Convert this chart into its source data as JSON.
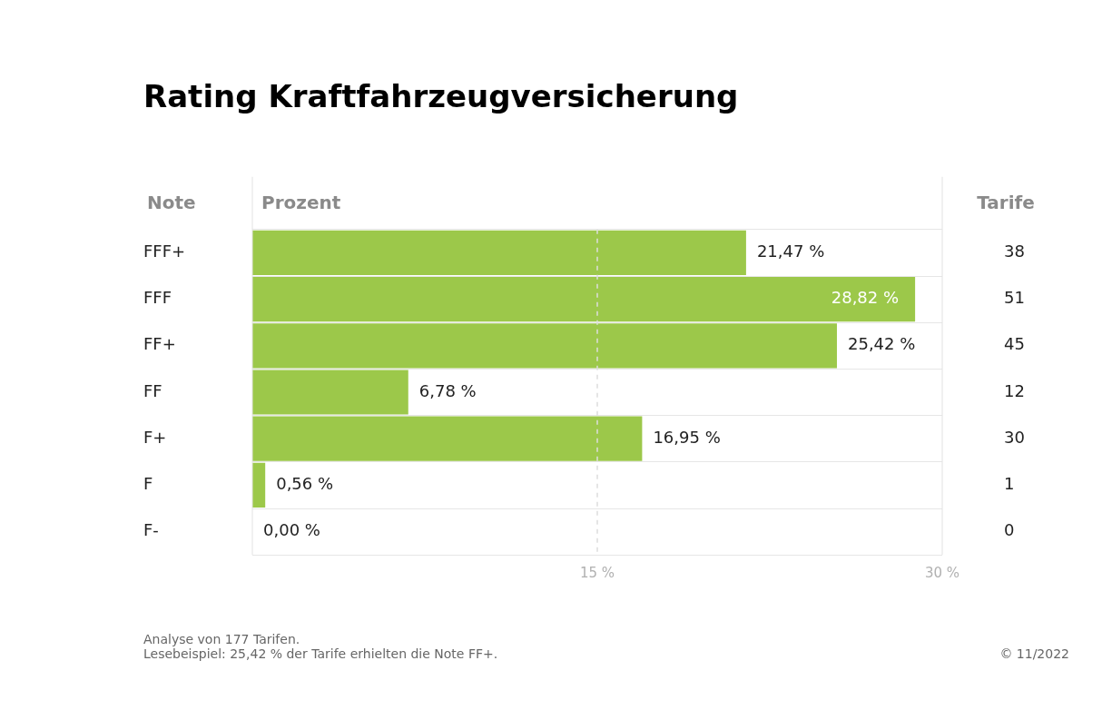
{
  "chart_data": {
    "type": "bar",
    "orientation": "horizontal",
    "title": "Rating Kraftfahrzeugversicherung",
    "ylabel": "Note",
    "xlabel": "Prozent",
    "y2label": "Tarife",
    "categories": [
      "FFF+",
      "FFF",
      "FF+",
      "FF",
      "F+",
      "F",
      "F-"
    ],
    "y2_categories": [
      "38",
      "51",
      "45",
      "12",
      "30",
      "1",
      "0"
    ],
    "values": [
      21.47,
      28.82,
      25.42,
      6.78,
      16.95,
      0.56,
      0.0
    ],
    "value_labels": [
      "21,47 %",
      "28,82 %",
      "25,42 %",
      "6,78 %",
      "16,95 %",
      "0,56 %",
      "0,00 %"
    ],
    "color": "#9cc84a",
    "xlim": [
      0,
      30
    ],
    "xticks": [
      {
        "value": 15,
        "label": "15 %"
      },
      {
        "value": 30,
        "label": "30 %"
      }
    ],
    "grid": "y",
    "ref_lines": [
      {
        "axis": "x",
        "value": 15,
        "color": "#dddddd",
        "line_style": "dashed"
      }
    ],
    "annotations": [
      "Analyse von 177 Tarifen.",
      "Lesebeispiel: 25,42 % der Tarife erhielten die Note FF+.",
      "© 11/2022"
    ]
  }
}
